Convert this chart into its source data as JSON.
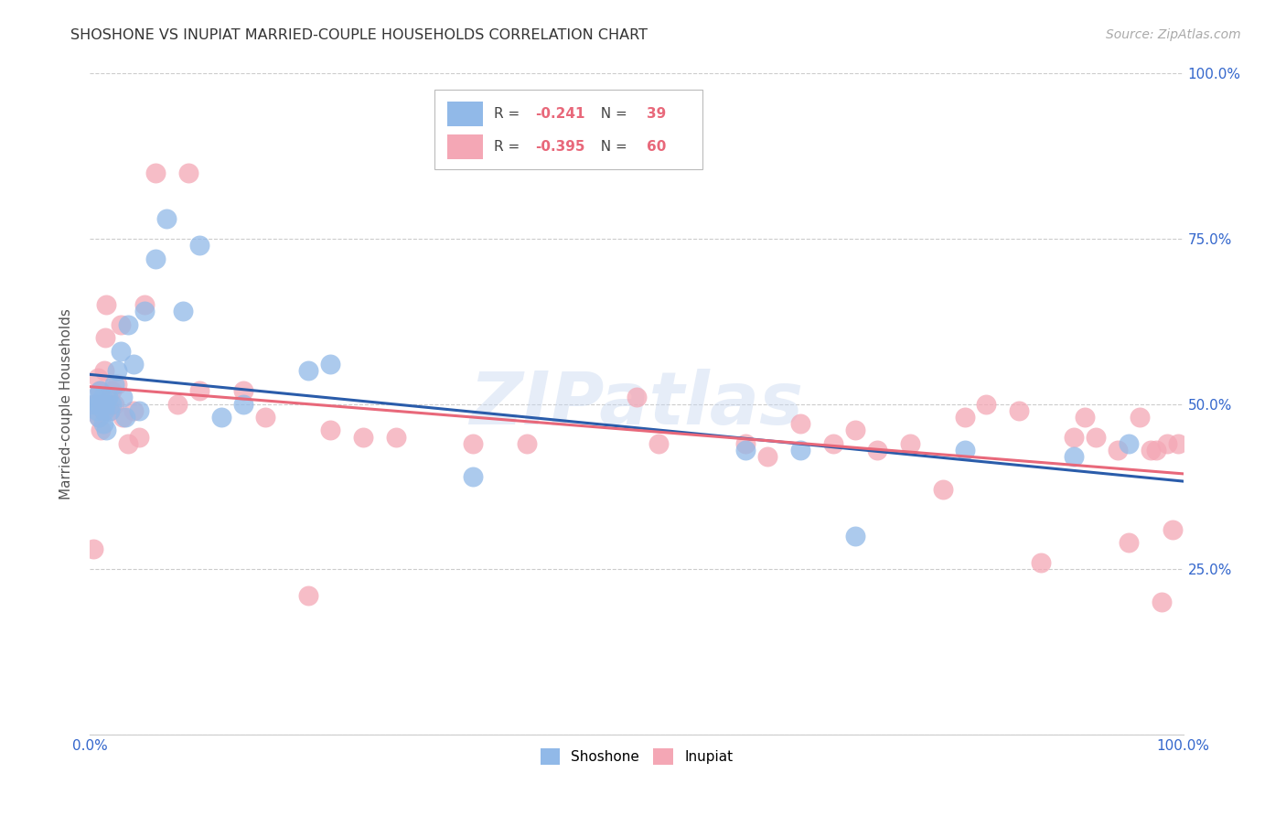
{
  "title": "SHOSHONE VS INUPIAT MARRIED-COUPLE HOUSEHOLDS CORRELATION CHART",
  "source": "Source: ZipAtlas.com",
  "ylabel": "Married-couple Households",
  "watermark": "ZIPatlas",
  "shoshone_R": -0.241,
  "shoshone_N": 39,
  "inupiat_R": -0.395,
  "inupiat_N": 60,
  "shoshone_color": "#91b9e8",
  "inupiat_color": "#f4a7b5",
  "shoshone_line_color": "#2a5caa",
  "inupiat_line_color": "#e8687a",
  "background_color": "#ffffff",
  "grid_color": "#cccccc",
  "axis_label_color": "#3366cc",
  "title_color": "#333333",
  "xlim": [
    0,
    1
  ],
  "ylim": [
    0,
    1
  ],
  "shoshone_x": [
    0.003,
    0.005,
    0.006,
    0.007,
    0.008,
    0.009,
    0.01,
    0.011,
    0.012,
    0.013,
    0.014,
    0.015,
    0.016,
    0.018,
    0.02,
    0.022,
    0.025,
    0.028,
    0.03,
    0.032,
    0.035,
    0.04,
    0.045,
    0.05,
    0.06,
    0.07,
    0.085,
    0.1,
    0.12,
    0.14,
    0.2,
    0.22,
    0.35,
    0.6,
    0.65,
    0.7,
    0.8,
    0.9,
    0.95
  ],
  "shoshone_y": [
    0.5,
    0.51,
    0.49,
    0.5,
    0.48,
    0.52,
    0.5,
    0.51,
    0.47,
    0.49,
    0.5,
    0.46,
    0.51,
    0.49,
    0.5,
    0.53,
    0.55,
    0.58,
    0.51,
    0.48,
    0.62,
    0.56,
    0.49,
    0.64,
    0.72,
    0.78,
    0.64,
    0.74,
    0.48,
    0.5,
    0.55,
    0.56,
    0.39,
    0.43,
    0.43,
    0.3,
    0.43,
    0.42,
    0.44
  ],
  "inupiat_x": [
    0.003,
    0.005,
    0.007,
    0.008,
    0.009,
    0.01,
    0.011,
    0.012,
    0.013,
    0.014,
    0.015,
    0.016,
    0.018,
    0.02,
    0.022,
    0.025,
    0.028,
    0.03,
    0.035,
    0.04,
    0.045,
    0.05,
    0.06,
    0.08,
    0.09,
    0.1,
    0.14,
    0.16,
    0.2,
    0.22,
    0.25,
    0.28,
    0.35,
    0.4,
    0.5,
    0.52,
    0.6,
    0.62,
    0.65,
    0.68,
    0.7,
    0.72,
    0.75,
    0.78,
    0.8,
    0.82,
    0.85,
    0.87,
    0.9,
    0.91,
    0.92,
    0.94,
    0.95,
    0.96,
    0.97,
    0.975,
    0.98,
    0.985,
    0.99,
    0.995
  ],
  "inupiat_y": [
    0.28,
    0.5,
    0.54,
    0.48,
    0.52,
    0.46,
    0.5,
    0.49,
    0.55,
    0.6,
    0.65,
    0.5,
    0.49,
    0.52,
    0.5,
    0.53,
    0.62,
    0.48,
    0.44,
    0.49,
    0.45,
    0.65,
    0.85,
    0.5,
    0.85,
    0.52,
    0.52,
    0.48,
    0.21,
    0.46,
    0.45,
    0.45,
    0.44,
    0.44,
    0.51,
    0.44,
    0.44,
    0.42,
    0.47,
    0.44,
    0.46,
    0.43,
    0.44,
    0.37,
    0.48,
    0.5,
    0.49,
    0.26,
    0.45,
    0.48,
    0.45,
    0.43,
    0.29,
    0.48,
    0.43,
    0.43,
    0.2,
    0.44,
    0.31,
    0.44
  ]
}
